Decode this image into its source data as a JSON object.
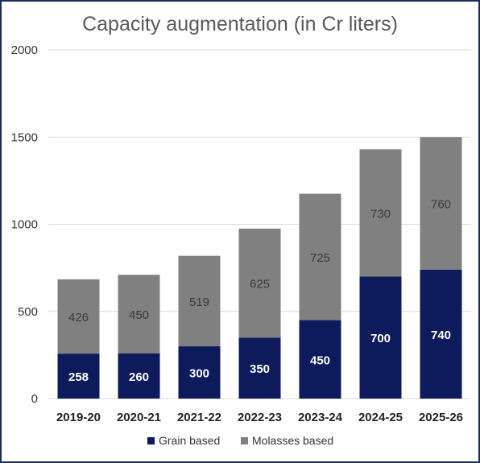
{
  "chart_data": {
    "type": "bar",
    "stacked": true,
    "title": "Capacity augmentation (in Cr liters)",
    "categories": [
      "2019-20",
      "2020-21",
      "2021-22",
      "2022-23",
      "2023-24",
      "2024-25",
      "2025-26"
    ],
    "series": [
      {
        "name": "Grain based",
        "color": "#0d1b5c",
        "values": [
          258,
          260,
          300,
          350,
          450,
          700,
          740
        ]
      },
      {
        "name": "Molasses based",
        "color": "#808080",
        "values": [
          426,
          450,
          519,
          625,
          725,
          730,
          760
        ]
      }
    ],
    "ylim": [
      0,
      2000
    ],
    "yticks": [
      "0",
      "500",
      "1000",
      "1500",
      "2000"
    ],
    "grid": true,
    "legend": "bottom"
  }
}
